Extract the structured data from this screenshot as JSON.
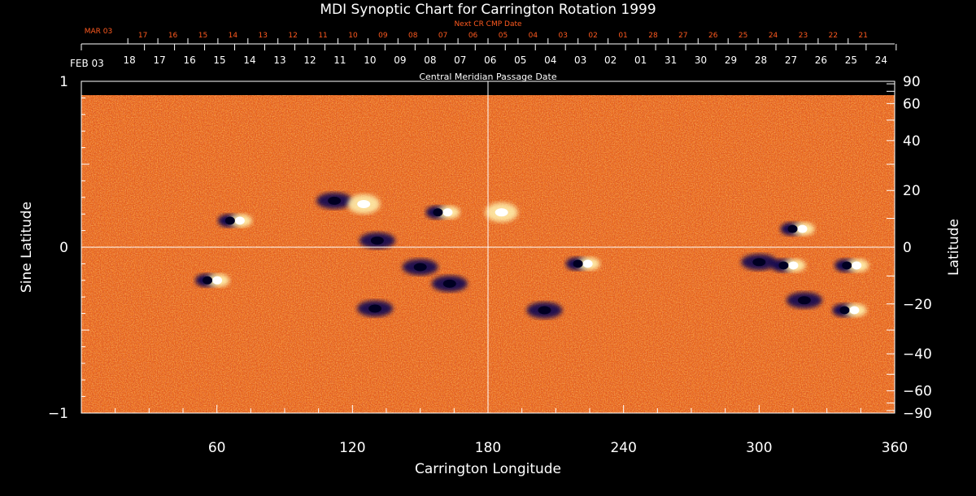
{
  "chart_data": {
    "type": "heatmap",
    "title": "MDI Synoptic Chart for Carrington Rotation 1999",
    "xlabel": "Carrington Longitude",
    "ylabel_left": "Sine Latitude",
    "ylabel_right": "Latitude",
    "xlim": [
      0,
      360
    ],
    "ylim": [
      -1,
      1
    ],
    "x_ticks": [
      60,
      120,
      180,
      240,
      300,
      360
    ],
    "y_ticks_left": [
      {
        "v": 1,
        "label": "1"
      },
      {
        "v": 0,
        "label": "0"
      },
      {
        "v": -1,
        "label": "−1"
      }
    ],
    "y_ticks_right": [
      90,
      60,
      40,
      20,
      0,
      -20,
      -40,
      -60,
      -90
    ],
    "y_ticks_right_labels": [
      "90",
      "60",
      "40",
      "20",
      "0",
      "−20",
      "−40",
      "−60",
      "−90"
    ],
    "cmp_axis_label": "Central Meridian Passage Date",
    "cmp_month_label": "FEB 03",
    "cmp_dates": [
      "18",
      "17",
      "16",
      "15",
      "14",
      "13",
      "12",
      "11",
      "10",
      "09",
      "08",
      "07",
      "06",
      "05",
      "04",
      "03",
      "02",
      "01",
      "31",
      "30",
      "29",
      "28",
      "27",
      "26",
      "25",
      "24"
    ],
    "next_cmp_axis_label": "Next CR CMP Date",
    "next_cmp_month_label": "MAR 03",
    "next_cmp_dates": [
      "17",
      "16",
      "15",
      "14",
      "13",
      "12",
      "11",
      "10",
      "09",
      "08",
      "07",
      "06",
      "05",
      "04",
      "03",
      "02",
      "01",
      "28",
      "27",
      "26",
      "25",
      "24",
      "23",
      "22",
      "21"
    ],
    "colors": {
      "background": "#000000",
      "field_base": "#e8641a",
      "positive": "#ffffff",
      "negative": "#000055",
      "next_axis": "#ff5a1f"
    },
    "active_regions": [
      {
        "lon": 68,
        "sinlat": 0.16,
        "polarity": "mixed"
      },
      {
        "lon": 112,
        "sinlat": 0.28,
        "polarity": "negative"
      },
      {
        "lon": 125,
        "sinlat": 0.26,
        "polarity": "positive"
      },
      {
        "lon": 131,
        "sinlat": 0.04,
        "polarity": "negative"
      },
      {
        "lon": 160,
        "sinlat": 0.21,
        "polarity": "mixed"
      },
      {
        "lon": 186,
        "sinlat": 0.21,
        "polarity": "positive"
      },
      {
        "lon": 58,
        "sinlat": -0.2,
        "polarity": "mixed"
      },
      {
        "lon": 150,
        "sinlat": -0.12,
        "polarity": "negative"
      },
      {
        "lon": 163,
        "sinlat": -0.22,
        "polarity": "negative"
      },
      {
        "lon": 130,
        "sinlat": -0.37,
        "polarity": "negative"
      },
      {
        "lon": 222,
        "sinlat": -0.1,
        "polarity": "mixed"
      },
      {
        "lon": 205,
        "sinlat": -0.38,
        "polarity": "negative"
      },
      {
        "lon": 317,
        "sinlat": 0.11,
        "polarity": "mixed"
      },
      {
        "lon": 300,
        "sinlat": -0.09,
        "polarity": "negative"
      },
      {
        "lon": 313,
        "sinlat": -0.11,
        "polarity": "mixed"
      },
      {
        "lon": 341,
        "sinlat": -0.11,
        "polarity": "mixed"
      },
      {
        "lon": 320,
        "sinlat": -0.32,
        "polarity": "negative"
      },
      {
        "lon": 340,
        "sinlat": -0.38,
        "polarity": "mixed"
      }
    ]
  }
}
